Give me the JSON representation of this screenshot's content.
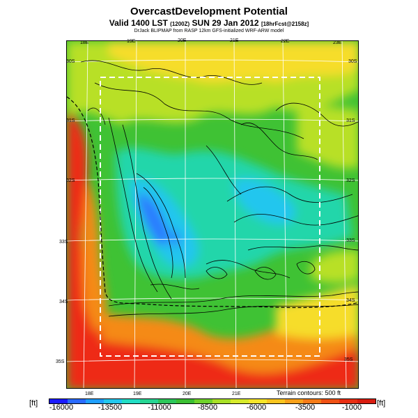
{
  "title": "OvercastDevelopment Potential",
  "subtitle_main": "Valid 1400 LST",
  "subtitle_small1": "(1200Z)",
  "subtitle_date": "SUN 29 Jan 2012",
  "subtitle_small2": "[18hrFcst@2158z]",
  "credit": "DrJack BLIPMAP from RASP 12km GFS-initialized WRF-ARW model",
  "lon_top": [
    "18E",
    "19E",
    "20E",
    "21E",
    "22E",
    "23E"
  ],
  "lon_bottom": [
    "18E",
    "19E",
    "20E",
    "21E"
  ],
  "lat_left": [
    "30S",
    "31S",
    "32S",
    "33S",
    "34S",
    "35S"
  ],
  "lat_right": [
    "30S",
    "31S",
    "32S",
    "33S",
    "34S",
    "35S"
  ],
  "terrain_note": "Terrain contours: 500 ft",
  "units_left": "[ft]",
  "units_right": "[ft]",
  "colorbar": {
    "labels": [
      "-16000",
      "-13500",
      "-11000",
      "-8500",
      "-6000",
      "-3500",
      "-1000"
    ],
    "colors": [
      "#1a1aff",
      "#2a6aff",
      "#1f9fff",
      "#22c8ee",
      "#22ddc4",
      "#27d593",
      "#2cc75a",
      "#3bbf33",
      "#6fd22a",
      "#a8e026",
      "#d6ea2b",
      "#f6e52a",
      "#f9c51f",
      "#f7a11a",
      "#f47b17",
      "#ef5114",
      "#e82e12",
      "#d81c10"
    ]
  },
  "map_colors": {
    "red": "#ee2a12",
    "orange": "#f58a17",
    "yellow": "#f6dd2a",
    "yellowgreen": "#b8e027",
    "green": "#3fc234",
    "teal": "#22d6aa",
    "cyan": "#22c6ee",
    "blue": "#2a7cff"
  }
}
